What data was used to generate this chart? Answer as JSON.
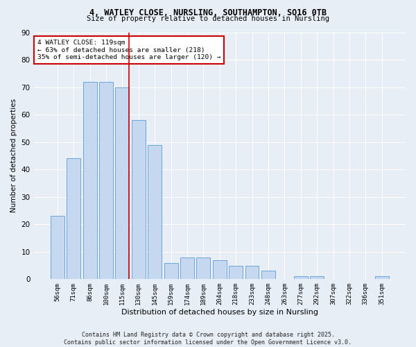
{
  "title1": "4, WATLEY CLOSE, NURSLING, SOUTHAMPTON, SO16 0TB",
  "title2": "Size of property relative to detached houses in Nursling",
  "xlabel": "Distribution of detached houses by size in Nursling",
  "ylabel": "Number of detached properties",
  "categories": [
    "56sqm",
    "71sqm",
    "86sqm",
    "100sqm",
    "115sqm",
    "130sqm",
    "145sqm",
    "159sqm",
    "174sqm",
    "189sqm",
    "204sqm",
    "218sqm",
    "233sqm",
    "248sqm",
    "263sqm",
    "277sqm",
    "292sqm",
    "307sqm",
    "322sqm",
    "336sqm",
    "351sqm"
  ],
  "values": [
    23,
    44,
    72,
    72,
    70,
    58,
    49,
    6,
    8,
    8,
    7,
    5,
    5,
    3,
    0,
    1,
    1,
    0,
    0,
    0,
    1
  ],
  "bar_color": "#c5d8f0",
  "bar_edge_color": "#5b9bd5",
  "background_color": "#e8eef6",
  "grid_color": "#ffffff",
  "vline_x_index": 4,
  "vline_color": "#cc0000",
  "annotation_line1": "4 WATLEY CLOSE: 119sqm",
  "annotation_line2": "← 63% of detached houses are smaller (218)",
  "annotation_line3": "35% of semi-detached houses are larger (120) →",
  "annotation_box_color": "#ffffff",
  "annotation_box_edge_color": "#cc0000",
  "footer1": "Contains HM Land Registry data © Crown copyright and database right 2025.",
  "footer2": "Contains public sector information licensed under the Open Government Licence v3.0.",
  "ylim": [
    0,
    90
  ],
  "yticks": [
    0,
    10,
    20,
    30,
    40,
    50,
    60,
    70,
    80,
    90
  ]
}
